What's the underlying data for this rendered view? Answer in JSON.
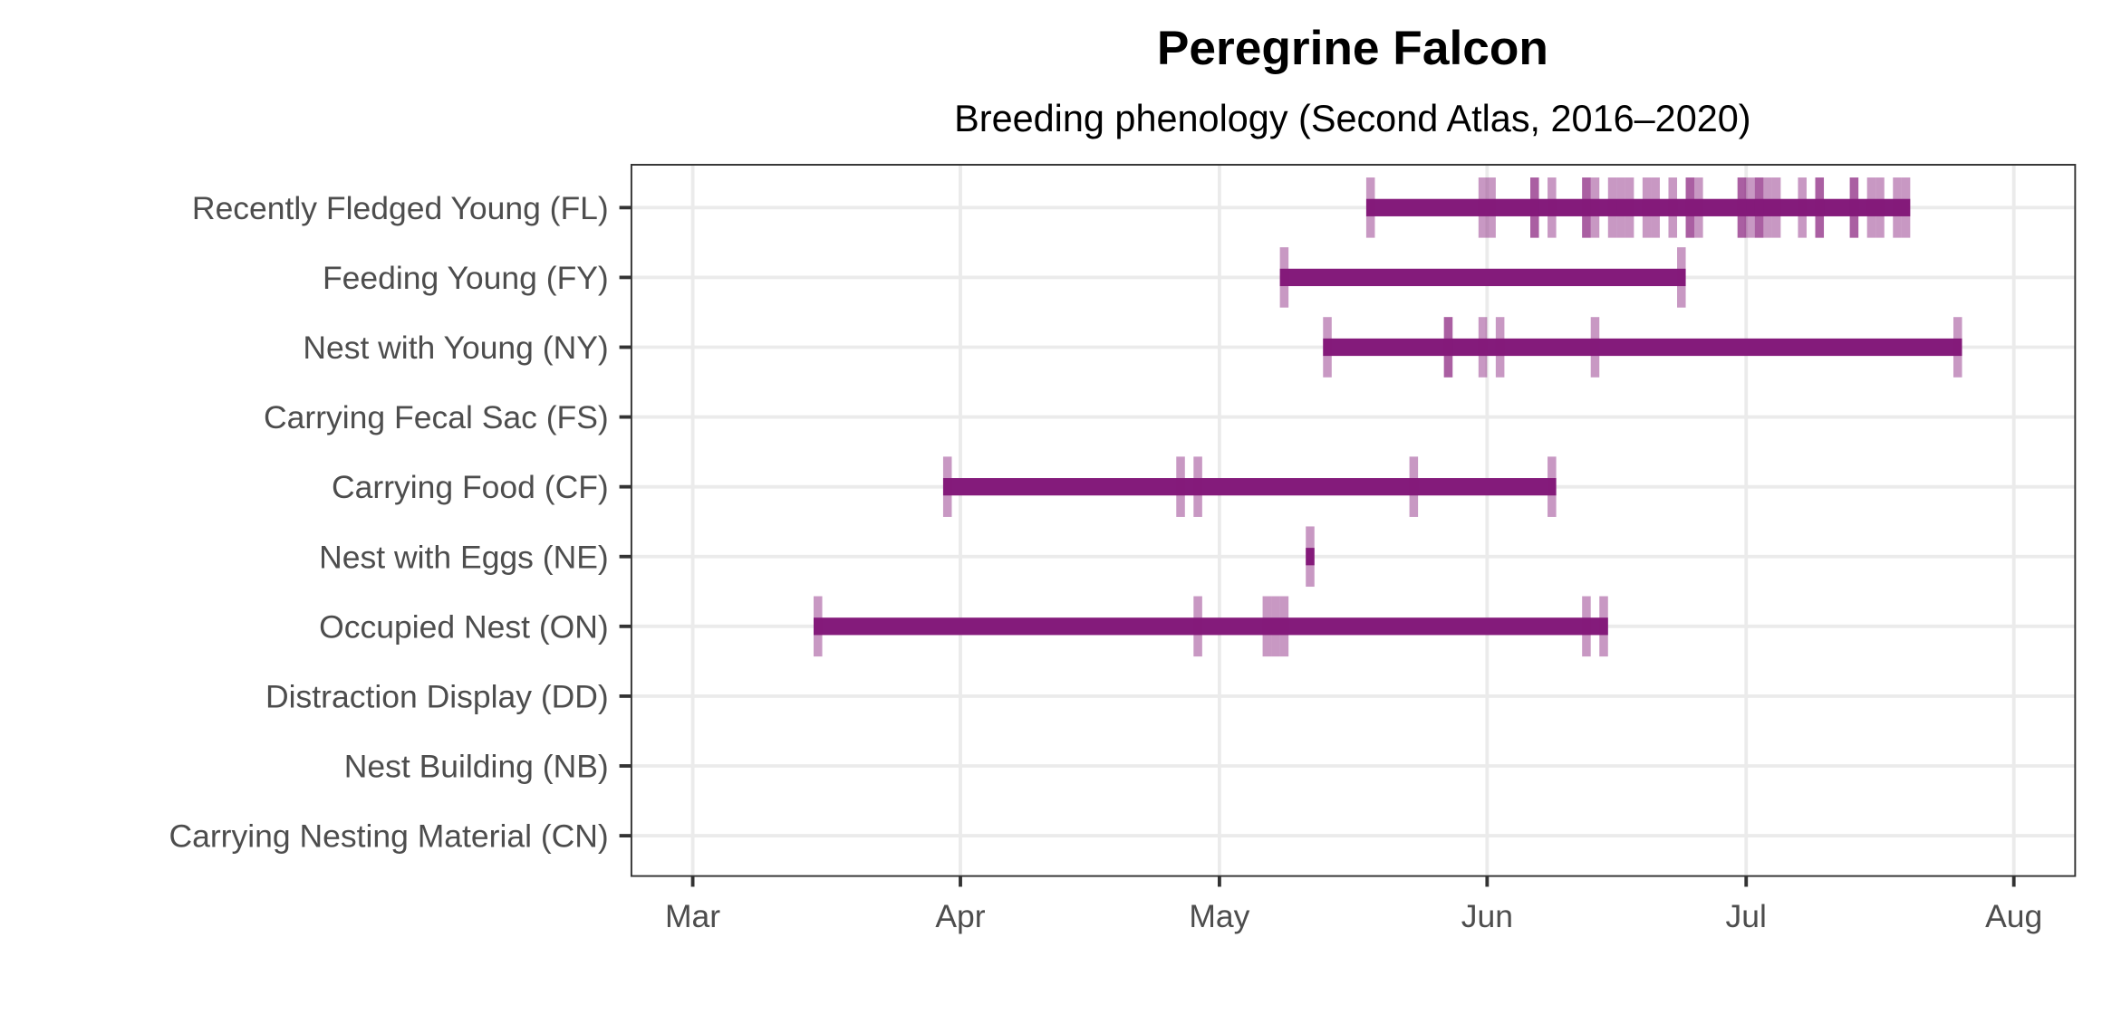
{
  "chart_data": {
    "type": "timeline",
    "title": "Peregrine Falcon",
    "subtitle": "Breeding phenology (Second Atlas, 2016–2020)",
    "xlabel": "",
    "ylabel": "",
    "x_unit": "day of year (MM-DD)",
    "xlim": [
      "02-22",
      "08-08"
    ],
    "grid": true,
    "x_ticks": [
      {
        "label": "Mar",
        "date": "03-01"
      },
      {
        "label": "Apr",
        "date": "04-01"
      },
      {
        "label": "May",
        "date": "05-01"
      },
      {
        "label": "Jun",
        "date": "06-01"
      },
      {
        "label": "Jul",
        "date": "07-01"
      },
      {
        "label": "Aug",
        "date": "08-01"
      }
    ],
    "colors": {
      "bar": "#841b7b",
      "tick": "#841b7b",
      "grid": "#ebebeb",
      "axis": "#333333"
    },
    "series": [
      {
        "name": "Recently Fledged Young (FL)",
        "observations": [
          {
            "date": "05-18",
            "count": 1
          },
          {
            "date": "05-31",
            "count": 1
          },
          {
            "date": "06-01",
            "count": 1
          },
          {
            "date": "06-06",
            "count": 2
          },
          {
            "date": "06-08",
            "count": 1
          },
          {
            "date": "06-12",
            "count": 2
          },
          {
            "date": "06-13",
            "count": 1
          },
          {
            "date": "06-15",
            "count": 1
          },
          {
            "date": "06-16",
            "count": 1
          },
          {
            "date": "06-17",
            "count": 1
          },
          {
            "date": "06-19",
            "count": 1
          },
          {
            "date": "06-20",
            "count": 1
          },
          {
            "date": "06-22",
            "count": 1
          },
          {
            "date": "06-24",
            "count": 2
          },
          {
            "date": "06-25",
            "count": 1
          },
          {
            "date": "06-30",
            "count": 2
          },
          {
            "date": "07-01",
            "count": 1
          },
          {
            "date": "07-02",
            "count": 2
          },
          {
            "date": "07-03",
            "count": 1
          },
          {
            "date": "07-04",
            "count": 1
          },
          {
            "date": "07-07",
            "count": 1
          },
          {
            "date": "07-09",
            "count": 2
          },
          {
            "date": "07-13",
            "count": 2
          },
          {
            "date": "07-15",
            "count": 1
          },
          {
            "date": "07-16",
            "count": 1
          },
          {
            "date": "07-18",
            "count": 1
          },
          {
            "date": "07-19",
            "count": 1
          }
        ]
      },
      {
        "name": "Feeding Young (FY)",
        "observations": [
          {
            "date": "05-08",
            "count": 1
          },
          {
            "date": "06-23",
            "count": 1
          }
        ]
      },
      {
        "name": "Nest with Young (NY)",
        "observations": [
          {
            "date": "05-13",
            "count": 1
          },
          {
            "date": "05-27",
            "count": 2
          },
          {
            "date": "05-31",
            "count": 1
          },
          {
            "date": "06-02",
            "count": 1
          },
          {
            "date": "06-13",
            "count": 1
          },
          {
            "date": "07-25",
            "count": 1
          }
        ]
      },
      {
        "name": "Carrying Fecal Sac (FS)",
        "observations": []
      },
      {
        "name": "Carrying Food (CF)",
        "observations": [
          {
            "date": "03-30",
            "count": 1
          },
          {
            "date": "04-26",
            "count": 1
          },
          {
            "date": "04-28",
            "count": 1
          },
          {
            "date": "05-23",
            "count": 1
          },
          {
            "date": "06-08",
            "count": 1
          }
        ]
      },
      {
        "name": "Nest with Eggs (NE)",
        "observations": [
          {
            "date": "05-11",
            "count": 1
          }
        ]
      },
      {
        "name": "Occupied Nest (ON)",
        "observations": [
          {
            "date": "03-15",
            "count": 1
          },
          {
            "date": "04-28",
            "count": 1
          },
          {
            "date": "05-06",
            "count": 1
          },
          {
            "date": "05-07",
            "count": 1
          },
          {
            "date": "05-08",
            "count": 1
          },
          {
            "date": "06-12",
            "count": 1
          },
          {
            "date": "06-14",
            "count": 1
          }
        ]
      },
      {
        "name": "Distraction Display (DD)",
        "observations": []
      },
      {
        "name": "Nest Building (NB)",
        "observations": []
      },
      {
        "name": "Carrying Nesting Material (CN)",
        "observations": []
      }
    ]
  }
}
